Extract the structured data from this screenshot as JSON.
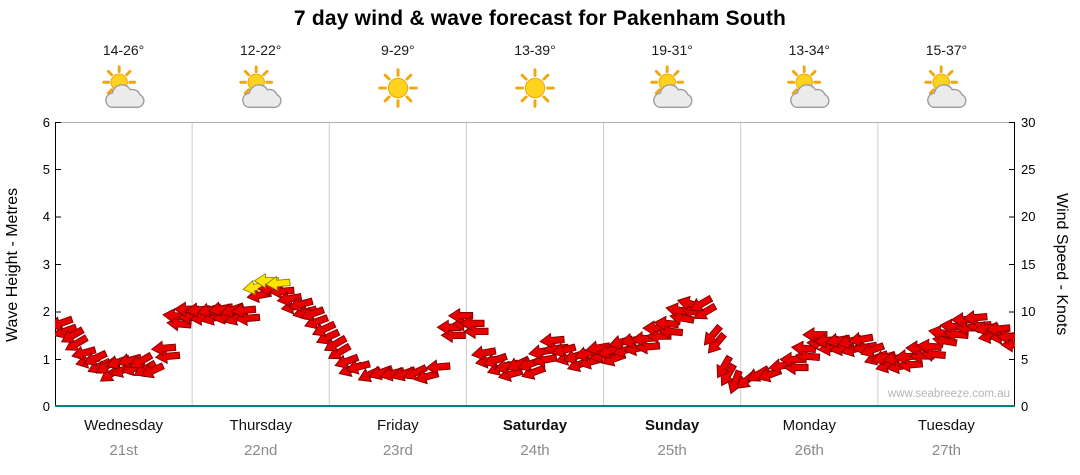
{
  "title": "7 day wind & wave forecast for Pakenham South",
  "watermark": "www.seabreeze.com.au",
  "axes": {
    "left_label": "Wave Height - Metres",
    "right_label": "Wind Speed - Knots",
    "left_ticks": [
      0,
      1,
      2,
      3,
      4,
      5,
      6
    ],
    "right_ticks": [
      0,
      5,
      10,
      15,
      20,
      25,
      30
    ]
  },
  "days": [
    {
      "name": "Wednesday",
      "date": "21st",
      "temp": "14-26°",
      "icon": "sun-cloud",
      "bold": false
    },
    {
      "name": "Thursday",
      "date": "22nd",
      "temp": "12-22°",
      "icon": "sun-cloud",
      "bold": false
    },
    {
      "name": "Friday",
      "date": "23rd",
      "temp": "9-29°",
      "icon": "sun",
      "bold": false
    },
    {
      "name": "Saturday",
      "date": "24th",
      "temp": "13-39°",
      "icon": "sun",
      "bold": true
    },
    {
      "name": "Sunday",
      "date": "25th",
      "temp": "19-31°",
      "icon": "sun-cloud",
      "bold": true
    },
    {
      "name": "Monday",
      "date": "26th",
      "temp": "13-34°",
      "icon": "sun-cloud",
      "bold": false
    },
    {
      "name": "Tuesday",
      "date": "27th",
      "temp": "15-37°",
      "icon": "sun-cloud",
      "bold": false
    }
  ],
  "chart_data": {
    "type": "wind-arrows",
    "title": "7 day wind & wave forecast for Pakenham South",
    "categories": [
      "Wednesday 21st",
      "Thursday 22nd",
      "Friday 23rd",
      "Saturday 24th",
      "Sunday 25th",
      "Monday 26th",
      "Tuesday 27th"
    ],
    "y_left": {
      "label": "Wave Height - Metres",
      "min": 0,
      "max": 6
    },
    "y_right": {
      "label": "Wind Speed - Knots",
      "min": 0,
      "max": 30
    },
    "points_per_day": 12,
    "wind_knots": [
      8.5,
      7.5,
      6,
      5,
      4.5,
      4.5,
      5,
      4.5,
      3.8,
      6.5,
      9.5,
      10.5,
      10,
      10.3,
      10,
      10.2,
      10.5,
      12.5,
      13.5,
      12.8,
      11.5,
      10.5,
      9.8,
      8.5,
      6.5,
      5,
      4,
      3.5,
      3.3,
      3.5,
      3.8,
      3.5,
      3.4,
      4,
      8.5,
      9.3,
      8.8,
      6,
      4.8,
      4.5,
      4.3,
      4.6,
      5.5,
      7,
      6.3,
      5.2,
      5.8,
      6,
      6,
      6.5,
      7,
      7.5,
      8.2,
      9,
      10,
      11,
      10.5,
      7.5,
      4.5,
      2.5,
      3,
      3.2,
      3.5,
      4,
      5,
      6.5,
      7.5,
      7.2,
      6.8,
      7,
      6.8,
      6,
      5.5,
      5,
      5.5,
      6,
      6.5,
      7.5,
      8.5,
      9.5,
      9.3,
      8.5,
      8,
      7.5
    ],
    "wind_dir_deg": [
      200,
      210,
      195,
      205,
      215,
      200,
      195,
      210,
      205,
      185,
      175,
      180,
      185,
      195,
      190,
      200,
      185,
      190,
      180,
      185,
      190,
      195,
      200,
      205,
      210,
      200,
      195,
      205,
      200,
      195,
      200,
      205,
      195,
      185,
      180,
      180,
      180,
      190,
      200,
      195,
      205,
      200,
      190,
      185,
      195,
      200,
      195,
      190,
      200,
      195,
      190,
      185,
      180,
      175,
      170,
      165,
      210,
      230,
      240,
      250,
      220,
      210,
      200,
      190,
      180,
      175,
      180,
      185,
      190,
      195,
      190,
      200,
      195,
      190,
      185,
      180,
      175,
      170,
      175,
      180,
      185,
      190,
      185,
      180
    ],
    "yellow_indices": [
      17,
      18,
      19
    ],
    "colors": {
      "arrow_red": "#e80000",
      "arrow_red_stroke": "#7f0000",
      "arrow_yellow": "#ffe400",
      "arrow_yellow_stroke": "#8f8400",
      "baseline": "#008080",
      "gridline": "#cccccc"
    }
  }
}
